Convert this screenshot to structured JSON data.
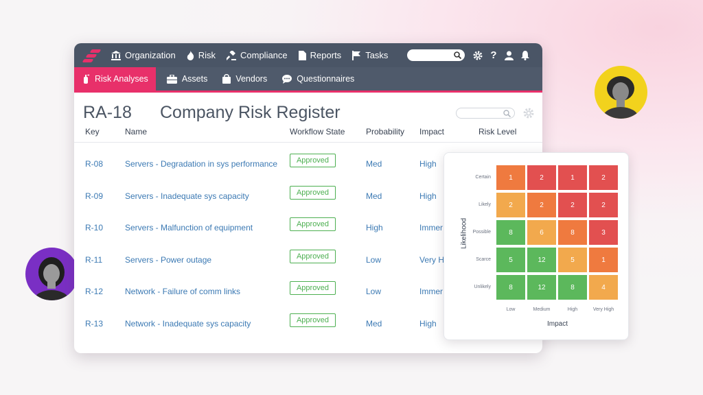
{
  "topnav": {
    "items": [
      {
        "label": "Organization",
        "icon": "bank-icon"
      },
      {
        "label": "Risk",
        "icon": "flame-icon"
      },
      {
        "label": "Compliance",
        "icon": "gavel-icon"
      },
      {
        "label": "Reports",
        "icon": "document-icon"
      },
      {
        "label": "Tasks",
        "icon": "flag-icon"
      }
    ],
    "search_placeholder": ""
  },
  "subnav": {
    "items": [
      {
        "label": "Risk Analyses",
        "icon": "fire-extinguisher-icon",
        "active": true
      },
      {
        "label": "Assets",
        "icon": "briefcase-icon"
      },
      {
        "label": "Vendors",
        "icon": "shopping-bag-icon"
      },
      {
        "label": "Questionnaires",
        "icon": "chat-bubble-icon"
      }
    ]
  },
  "page": {
    "key": "RA-18",
    "title": "Company Risk Register"
  },
  "table": {
    "columns": [
      "Key",
      "Name",
      "Workflow State",
      "Probability",
      "Impact",
      "Risk Level"
    ],
    "rows": [
      {
        "key": "R-08",
        "name": "Servers - Degradation in sys performance",
        "state": "Approved",
        "probability": "Med",
        "impact": "High"
      },
      {
        "key": "R-09",
        "name": "Servers - Inadequate sys capacity",
        "state": "Approved",
        "probability": "Med",
        "impact": "High"
      },
      {
        "key": "R-10",
        "name": "Servers - Malfunction of equipment",
        "state": "Approved",
        "probability": "High",
        "impact": "Immer"
      },
      {
        "key": "R-11",
        "name": "Servers - Power outage",
        "state": "Approved",
        "probability": "Low",
        "impact": "Very H"
      },
      {
        "key": "R-12",
        "name": "Network - Failure of comm links",
        "state": "Approved",
        "probability": "Low",
        "impact": "Immer"
      },
      {
        "key": "R-13",
        "name": "Network - Inadequate sys capacity",
        "state": "Approved",
        "probability": "Med",
        "impact": "High"
      }
    ]
  },
  "heatmap": {
    "x_title": "Impact",
    "y_title": "Likelihood",
    "x_labels": [
      "Low",
      "Medium",
      "High",
      "Very High"
    ],
    "y_labels": [
      "Certain",
      "Likely",
      "Possible",
      "Scarce",
      "Unlikely"
    ],
    "cells": [
      [
        {
          "v": "1",
          "c": "#ef7a3f"
        },
        {
          "v": "2",
          "c": "#e25050"
        },
        {
          "v": "1",
          "c": "#e25050"
        },
        {
          "v": "2",
          "c": "#e25050"
        }
      ],
      [
        {
          "v": "2",
          "c": "#f2a94d"
        },
        {
          "v": "2",
          "c": "#ef7a3f"
        },
        {
          "v": "2",
          "c": "#e25050"
        },
        {
          "v": "2",
          "c": "#e25050"
        }
      ],
      [
        {
          "v": "8",
          "c": "#5cb85c"
        },
        {
          "v": "6",
          "c": "#f2a94d"
        },
        {
          "v": "8",
          "c": "#ef7a3f"
        },
        {
          "v": "3",
          "c": "#e25050"
        }
      ],
      [
        {
          "v": "5",
          "c": "#5cb85c"
        },
        {
          "v": "12",
          "c": "#5cb85c"
        },
        {
          "v": "5",
          "c": "#f2a94d"
        },
        {
          "v": "1",
          "c": "#ef7a3f"
        }
      ],
      [
        {
          "v": "8",
          "c": "#5cb85c"
        },
        {
          "v": "12",
          "c": "#5cb85c"
        },
        {
          "v": "8",
          "c": "#5cb85c"
        },
        {
          "v": "4",
          "c": "#f2a94d"
        }
      ]
    ]
  },
  "colors": {
    "accent": "#e8306a",
    "topbar": "#4a5566",
    "link": "#3b79b3",
    "approved": "#4caf50"
  }
}
